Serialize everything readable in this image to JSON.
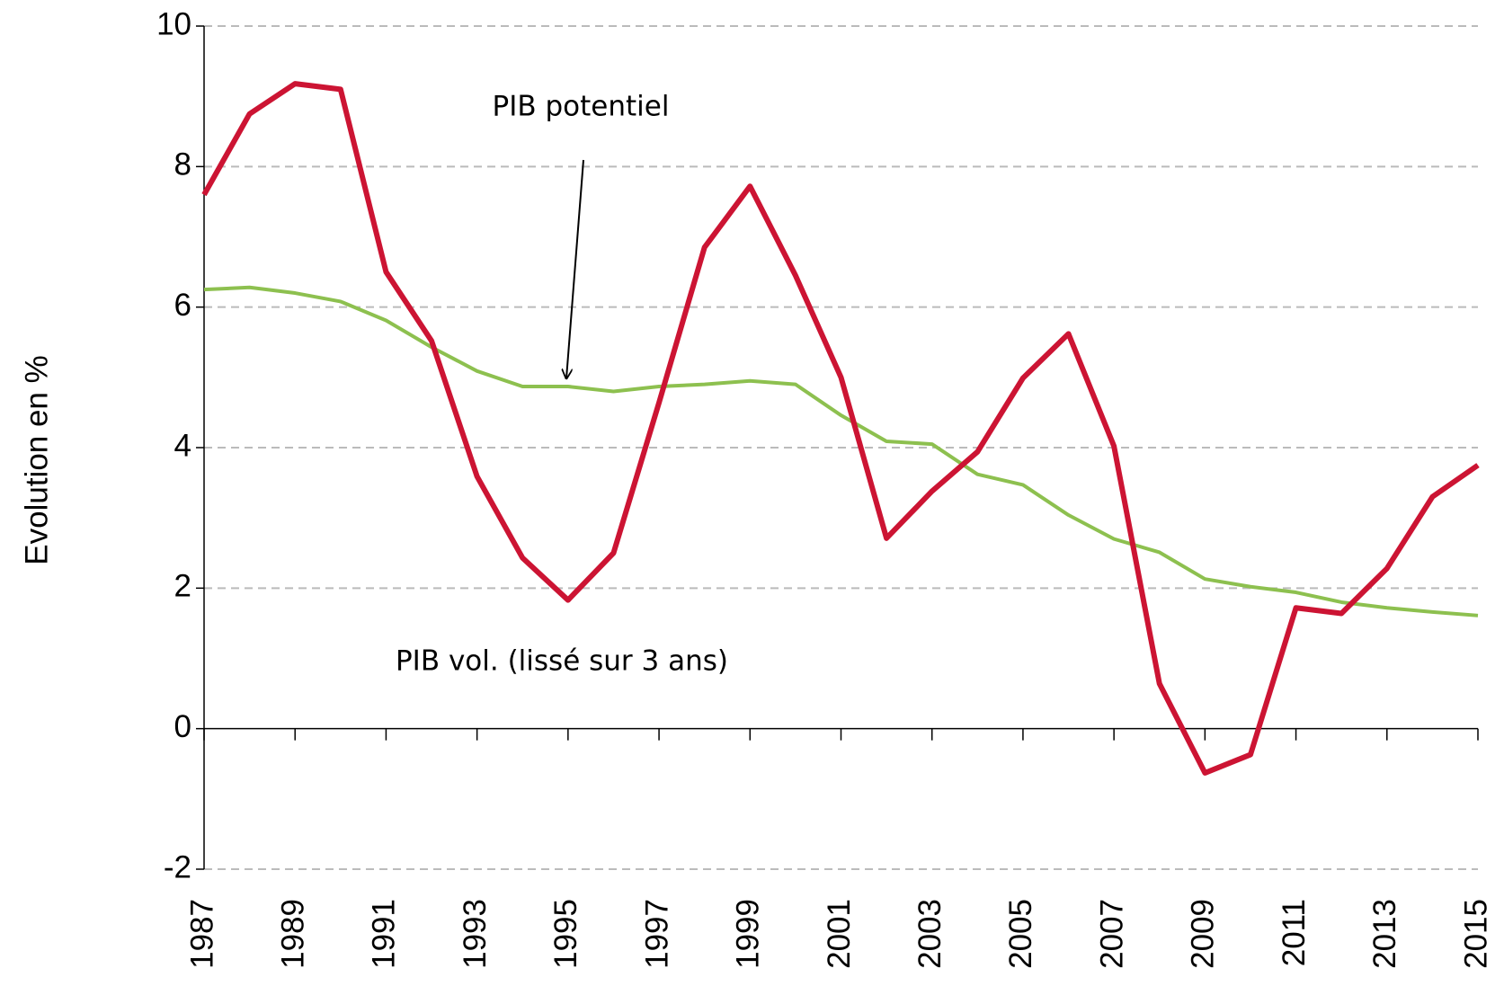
{
  "chart_data": {
    "type": "line",
    "y_label": "Evolution  en %",
    "annotations": [
      "PIB potentiel",
      "PIB vol. (lissé sur 3 ans)"
    ],
    "x": [
      1987,
      1988,
      1989,
      1990,
      1991,
      1992,
      1993,
      1994,
      1995,
      1996,
      1997,
      1998,
      1999,
      2000,
      2001,
      2002,
      2003,
      2004,
      2005,
      2006,
      2007,
      2008,
      2009,
      2010,
      2011,
      2012,
      2013,
      2014,
      2015
    ],
    "xlim": [
      1987,
      2015
    ],
    "xticks": [
      1987,
      1989,
      1991,
      1993,
      1995,
      1997,
      1999,
      2001,
      2003,
      2005,
      2007,
      2009,
      2011,
      2013,
      2015
    ],
    "ylim": [
      -2,
      10
    ],
    "yticks": [
      -2,
      0,
      2,
      4,
      6,
      8,
      10
    ],
    "grid": true,
    "series": [
      {
        "color": "#cc1433",
        "values": [
          7.6,
          8.75,
          9.18,
          9.1,
          6.5,
          5.52,
          3.59,
          2.43,
          1.83,
          2.5,
          4.64,
          6.85,
          7.72,
          6.45,
          5.0,
          2.71,
          3.38,
          3.94,
          4.99,
          5.62,
          4.02,
          0.64,
          -0.63,
          -0.37,
          1.72,
          1.64,
          2.28,
          3.3,
          3.75
        ]
      },
      {
        "color": "#8dc04f",
        "values": [
          6.25,
          6.28,
          6.2,
          6.08,
          5.81,
          5.43,
          5.09,
          4.87,
          4.87,
          4.8,
          4.87,
          4.9,
          4.95,
          4.9,
          4.46,
          4.09,
          4.05,
          3.62,
          3.47,
          3.04,
          2.7,
          2.51,
          2.13,
          2.02,
          1.94,
          1.8,
          1.72,
          1.66,
          1.61
        ]
      }
    ]
  }
}
